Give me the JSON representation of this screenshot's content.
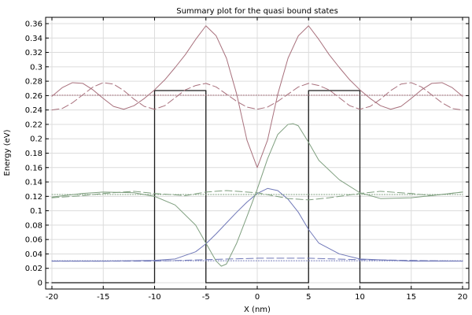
{
  "chart_data": {
    "type": "line",
    "title": "Summary plot for the quasi bound states",
    "xlabel": "X (nm)",
    "ylabel": "Energy (eV)",
    "xlim": [
      -20,
      20
    ],
    "ylim": [
      0,
      0.36
    ],
    "xticks": [
      -20,
      -15,
      -10,
      -5,
      0,
      5,
      10,
      15,
      20
    ],
    "yticks": [
      0,
      0.02,
      0.04,
      0.06,
      0.08,
      0.1,
      0.12,
      0.14,
      0.16,
      0.18,
      0.2,
      0.22,
      0.24,
      0.26,
      0.28,
      0.3,
      0.32,
      0.34,
      0.36
    ],
    "ytick_labels": [
      "0",
      "0.02",
      "0.04",
      "0.06",
      "0.08",
      "0.1",
      "0.12",
      "0.14",
      "0.16",
      "0.18",
      "0.2",
      "0.22",
      "0.24",
      "0.26",
      "0.28",
      "0.3",
      "0.32",
      "0.34",
      "0.36"
    ],
    "grid": true,
    "colors": {
      "potential": "#1a1a1a",
      "state1": "#7078b8",
      "state2": "#7f9f7f",
      "state3": "#a8707c",
      "grid": "#dcdcdc"
    },
    "series": [
      {
        "style": "solid",
        "color_key": "potential",
        "x": [
          -20,
          -10,
          -10,
          -5,
          -5,
          5,
          5,
          10,
          10,
          20
        ],
        "y": [
          0,
          0,
          0.267,
          0.267,
          0,
          0,
          0.267,
          0.267,
          0,
          0
        ]
      },
      {
        "style": "dotted",
        "color_key": "state1",
        "x": [
          -20,
          20
        ],
        "y": [
          0.0305,
          0.0305
        ]
      },
      {
        "style": "solid",
        "color_key": "state1",
        "x": [
          -20,
          -15,
          -10,
          -8,
          -6,
          -5,
          -4,
          -3,
          -2,
          -1,
          0,
          1,
          2,
          3,
          4,
          5,
          6,
          8,
          10,
          15,
          20
        ],
        "y": [
          0.03,
          0.03,
          0.031,
          0.033,
          0.043,
          0.054,
          0.068,
          0.083,
          0.098,
          0.112,
          0.124,
          0.131,
          0.128,
          0.116,
          0.098,
          0.074,
          0.055,
          0.04,
          0.033,
          0.03,
          0.03
        ]
      },
      {
        "style": "dashed",
        "color_key": "state1",
        "x": [
          -20,
          -15,
          -10,
          -5,
          0,
          5,
          10,
          15,
          20
        ],
        "y": [
          0.03,
          0.03,
          0.03,
          0.032,
          0.034,
          0.034,
          0.032,
          0.031,
          0.03
        ]
      },
      {
        "style": "dotted",
        "color_key": "state2",
        "x": [
          -20,
          20
        ],
        "y": [
          0.1225,
          0.1225
        ]
      },
      {
        "style": "solid",
        "color_key": "state2",
        "x": [
          -20,
          -17,
          -15,
          -12,
          -10,
          -8,
          -6,
          -5,
          -4,
          -3.5,
          -3,
          -2,
          -1,
          0,
          1,
          2,
          3,
          3.5,
          4,
          5,
          6,
          8,
          10,
          12,
          15,
          17,
          20
        ],
        "y": [
          0.119,
          0.124,
          0.126,
          0.125,
          0.12,
          0.108,
          0.08,
          0.055,
          0.03,
          0.023,
          0.026,
          0.055,
          0.092,
          0.13,
          0.172,
          0.206,
          0.22,
          0.221,
          0.218,
          0.195,
          0.17,
          0.143,
          0.125,
          0.117,
          0.118,
          0.121,
          0.126
        ]
      },
      {
        "style": "dashed",
        "color_key": "state2",
        "x": [
          -20,
          -17,
          -15,
          -12,
          -10,
          -7,
          -5,
          -3,
          0,
          3,
          5,
          7,
          10,
          12,
          15,
          17,
          20
        ],
        "y": [
          0.118,
          0.121,
          0.124,
          0.127,
          0.124,
          0.121,
          0.126,
          0.128,
          0.125,
          0.117,
          0.115,
          0.118,
          0.124,
          0.127,
          0.124,
          0.121,
          0.126
        ]
      },
      {
        "style": "dotted",
        "color_key": "state3",
        "x": [
          -20,
          20
        ],
        "y": [
          0.2605,
          0.2605
        ]
      },
      {
        "style": "solid",
        "color_key": "state3",
        "x": [
          -20,
          -19,
          -18,
          -17,
          -16,
          -15,
          -14,
          -13,
          -12,
          -11,
          -10,
          -9,
          -8,
          -7,
          -6,
          -5,
          -4,
          -3,
          -2,
          -1,
          0,
          1,
          2,
          3,
          4,
          5,
          6,
          7,
          8,
          9,
          10,
          11,
          12,
          13,
          14,
          15,
          16,
          17,
          18,
          19,
          20
        ],
        "y": [
          0.259,
          0.271,
          0.278,
          0.277,
          0.268,
          0.256,
          0.245,
          0.241,
          0.246,
          0.256,
          0.268,
          0.282,
          0.299,
          0.317,
          0.338,
          0.357,
          0.343,
          0.312,
          0.262,
          0.198,
          0.16,
          0.198,
          0.262,
          0.312,
          0.343,
          0.357,
          0.338,
          0.317,
          0.299,
          0.282,
          0.268,
          0.256,
          0.246,
          0.241,
          0.245,
          0.256,
          0.268,
          0.277,
          0.278,
          0.271,
          0.259
        ]
      },
      {
        "style": "dashed",
        "color_key": "state3",
        "x": [
          -20,
          -19,
          -18,
          -17,
          -16,
          -15,
          -14,
          -13,
          -12,
          -11,
          -10,
          -9,
          -8,
          -7,
          -6,
          -5,
          -4,
          -3,
          -2,
          -1,
          0,
          1,
          2,
          3,
          4,
          5,
          6,
          7,
          8,
          9,
          10,
          11,
          12,
          13,
          14,
          15,
          16,
          17,
          18,
          19,
          20
        ],
        "y": [
          0.24,
          0.242,
          0.25,
          0.261,
          0.272,
          0.278,
          0.276,
          0.267,
          0.255,
          0.245,
          0.241,
          0.246,
          0.257,
          0.268,
          0.274,
          0.277,
          0.272,
          0.262,
          0.252,
          0.244,
          0.241,
          0.244,
          0.252,
          0.262,
          0.272,
          0.277,
          0.274,
          0.268,
          0.257,
          0.246,
          0.241,
          0.245,
          0.255,
          0.267,
          0.276,
          0.278,
          0.272,
          0.261,
          0.25,
          0.242,
          0.24
        ]
      }
    ]
  }
}
